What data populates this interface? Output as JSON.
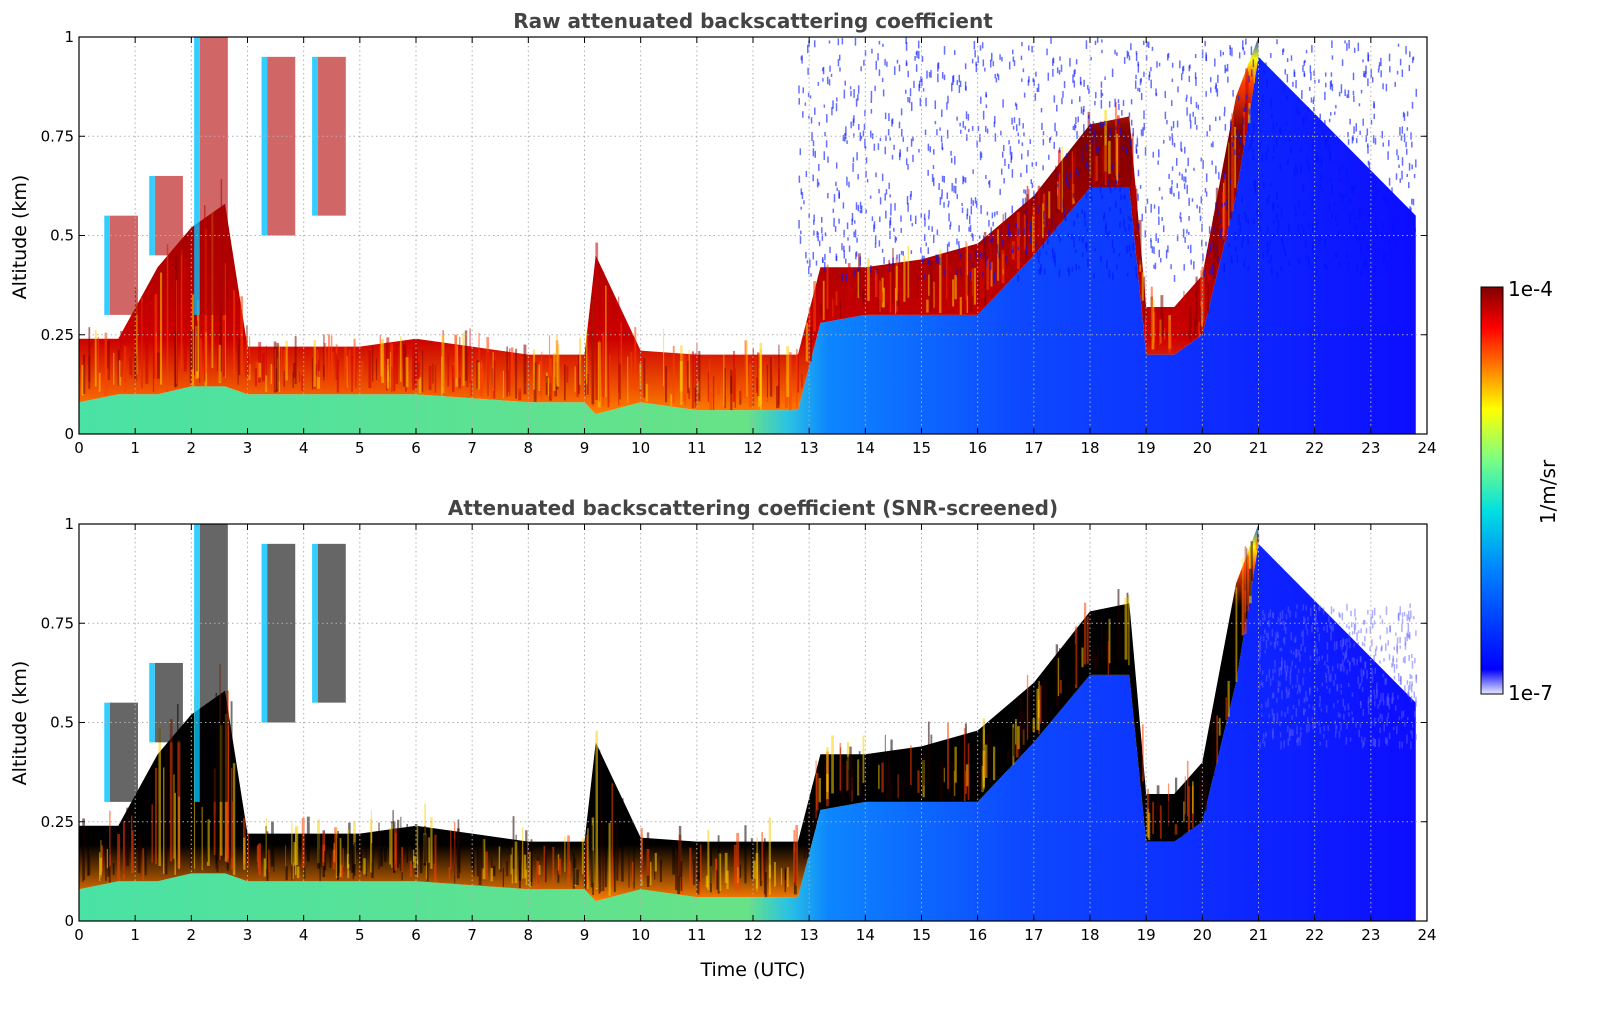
{
  "chart_data": [
    {
      "type": "heatmap",
      "title": "Raw attenuated backscattering coefficient",
      "xlabel": "",
      "ylabel": "Altitude (km)",
      "xlim": [
        0,
        24
      ],
      "ylim": [
        0,
        1
      ],
      "xticks": [
        "0",
        "1",
        "2",
        "3",
        "4",
        "5",
        "6",
        "7",
        "8",
        "9",
        "10",
        "11",
        "12",
        "13",
        "14",
        "15",
        "16",
        "17",
        "18",
        "19",
        "20",
        "21",
        "22",
        "23",
        "24"
      ],
      "yticks": [
        "0",
        "0.25",
        "0.5",
        "0.75",
        "1"
      ],
      "grid": true,
      "layers": [
        {
          "t": [
            0,
            0.7,
            1.4,
            2.0,
            2.6,
            3.0,
            4.0,
            5.0,
            6.0,
            7.0,
            8.0,
            9.0,
            9.2,
            10.0,
            11.0,
            12.0,
            12.8,
            13.2,
            14.0,
            15.0,
            16.0,
            17.0,
            18.0,
            18.7,
            19.0,
            19.5,
            20.0,
            20.6,
            21.0
          ],
          "base": [
            0.08,
            0.1,
            0.1,
            0.12,
            0.12,
            0.1,
            0.1,
            0.1,
            0.1,
            0.09,
            0.08,
            0.08,
            0.05,
            0.08,
            0.06,
            0.06,
            0.06,
            0.28,
            0.3,
            0.3,
            0.3,
            0.45,
            0.62,
            0.62,
            0.2,
            0.2,
            0.25,
            0.6,
            0.95
          ],
          "top": [
            0.24,
            0.24,
            0.42,
            0.52,
            0.58,
            0.22,
            0.22,
            0.22,
            0.24,
            0.22,
            0.2,
            0.2,
            0.45,
            0.21,
            0.2,
            0.2,
            0.2,
            0.42,
            0.42,
            0.44,
            0.48,
            0.6,
            0.78,
            0.8,
            0.32,
            0.32,
            0.4,
            0.85,
            1.0
          ]
        }
      ]
    },
    {
      "type": "heatmap",
      "title": "Attenuated backscattering coefficient (SNR-screened)",
      "xlabel": "Time (UTC)",
      "ylabel": "Altitude (km)",
      "xlim": [
        0,
        24
      ],
      "ylim": [
        0,
        1
      ],
      "xticks": [
        "0",
        "1",
        "2",
        "3",
        "4",
        "5",
        "6",
        "7",
        "8",
        "9",
        "10",
        "11",
        "12",
        "13",
        "14",
        "15",
        "16",
        "17",
        "18",
        "19",
        "20",
        "21",
        "22",
        "23",
        "24"
      ],
      "yticks": [
        "0",
        "0.25",
        "0.5",
        "0.75",
        "1"
      ],
      "grid": true,
      "layers": [
        {
          "t": [
            0,
            0.7,
            1.4,
            2.0,
            2.6,
            3.0,
            4.0,
            5.0,
            6.0,
            7.0,
            8.0,
            9.0,
            9.2,
            10.0,
            11.0,
            12.0,
            12.8,
            13.2,
            14.0,
            15.0,
            16.0,
            17.0,
            18.0,
            18.7,
            19.0,
            19.5,
            20.0,
            20.6,
            21.0
          ],
          "base": [
            0.08,
            0.1,
            0.1,
            0.12,
            0.12,
            0.1,
            0.1,
            0.1,
            0.1,
            0.09,
            0.08,
            0.08,
            0.05,
            0.08,
            0.06,
            0.06,
            0.06,
            0.28,
            0.3,
            0.3,
            0.3,
            0.45,
            0.62,
            0.62,
            0.2,
            0.2,
            0.25,
            0.6,
            0.95
          ],
          "top": [
            0.24,
            0.24,
            0.42,
            0.52,
            0.58,
            0.22,
            0.22,
            0.22,
            0.24,
            0.22,
            0.2,
            0.2,
            0.45,
            0.21,
            0.2,
            0.2,
            0.2,
            0.42,
            0.42,
            0.44,
            0.48,
            0.6,
            0.78,
            0.8,
            0.32,
            0.32,
            0.4,
            0.85,
            1.0
          ]
        }
      ]
    }
  ],
  "colorbar": {
    "label": "1/m/sr",
    "max_label": "1e-4",
    "min_label": "1e-7",
    "colormap": "jet",
    "stops": [
      "#e8e8ff",
      "#0000ff",
      "#0080ff",
      "#00e0e0",
      "#80ff80",
      "#ffff00",
      "#ff8000",
      "#ff0000",
      "#800000"
    ]
  }
}
